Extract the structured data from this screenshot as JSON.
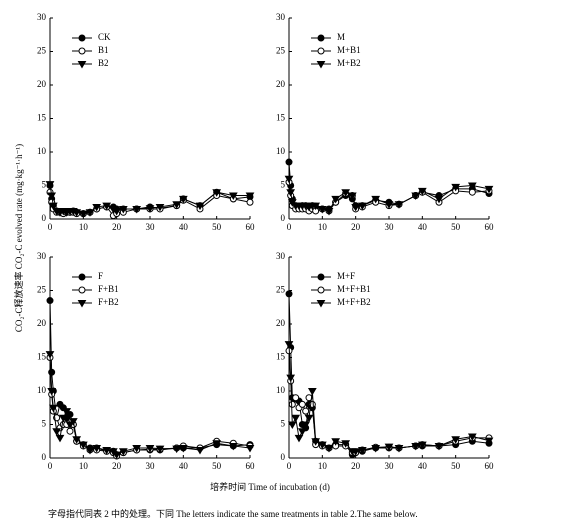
{
  "y_label": "CO₂-C释放速率 CO₂-C evolved rate (mg·kg⁻¹·h⁻¹)",
  "x_label": "培养时间  Time of incubation (d)",
  "caption": "字母指代同表 2 中的处理。下同    The letters indicate the same treatments in table 2.The same below.",
  "chart_data": [
    {
      "type": "line",
      "legend": "upper left",
      "x": [
        0,
        0.5,
        1,
        2,
        3,
        4,
        5,
        6,
        7,
        8,
        10,
        12,
        14,
        17,
        19,
        20,
        22,
        26,
        30,
        33,
        38,
        40,
        45,
        50,
        55,
        60
      ],
      "xlim": [
        0,
        60
      ],
      "xticks": [
        0,
        10,
        20,
        30,
        40,
        50,
        60
      ],
      "ylim": [
        0,
        30
      ],
      "yticks": [
        0,
        5,
        10,
        15,
        20,
        25,
        30
      ],
      "series": [
        {
          "name": "CK",
          "color": "#000000",
          "marker": "circle",
          "values": [
            5,
            3,
            2,
            1.2,
            1,
            1,
            1,
            1,
            1.2,
            1,
            0.8,
            1,
            1.5,
            1.8,
            1.8,
            1.5,
            1.5,
            1.5,
            1.8,
            1.6,
            2,
            3,
            2,
            4,
            3,
            3.3
          ]
        },
        {
          "name": "B1",
          "color": "#000000",
          "marker": "open-circle",
          "values": [
            4,
            2.5,
            1.5,
            1,
            1,
            0.8,
            1,
            1,
            1,
            0.8,
            0.8,
            1,
            1.5,
            1.8,
            0.5,
            0.8,
            1,
            1.5,
            1.5,
            1.5,
            2,
            2.8,
            1.5,
            3.5,
            3,
            2.5
          ]
        },
        {
          "name": "B2",
          "color": "#000000",
          "marker": "triangle-down",
          "values": [
            5.2,
            3.5,
            2,
            1.2,
            1,
            1.2,
            1,
            1.2,
            1.2,
            1,
            0.8,
            1,
            1.8,
            2,
            1.5,
            1.2,
            1.5,
            1.5,
            1.6,
            1.8,
            2.2,
            3,
            2,
            4,
            3.5,
            3.5
          ]
        }
      ]
    },
    {
      "type": "line",
      "legend": "upper left",
      "x": [
        0,
        0.5,
        1,
        2,
        3,
        4,
        5,
        6,
        7,
        8,
        10,
        12,
        14,
        17,
        19,
        20,
        22,
        26,
        30,
        33,
        38,
        40,
        45,
        50,
        55,
        60
      ],
      "xlim": [
        0,
        60
      ],
      "xticks": [
        0,
        10,
        20,
        30,
        40,
        50,
        60
      ],
      "ylim": [
        0,
        30
      ],
      "yticks": [
        0,
        5,
        10,
        15,
        20,
        25,
        30
      ],
      "series": [
        {
          "name": "M",
          "color": "#000000",
          "marker": "circle",
          "values": [
            8.5,
            5,
            3,
            2,
            1.8,
            2,
            2,
            1.8,
            2,
            1.8,
            1.5,
            1.5,
            2.5,
            3.5,
            3,
            2,
            2,
            2.8,
            2.5,
            2.2,
            3.5,
            4,
            3.5,
            4.5,
            4.5,
            3.8
          ]
        },
        {
          "name": "M+B1",
          "color": "#000000",
          "marker": "open-circle",
          "values": [
            5.5,
            3.5,
            2,
            1.5,
            1.5,
            1.5,
            1.5,
            1.2,
            1.5,
            1.2,
            1.5,
            1.2,
            2.5,
            3.8,
            3.5,
            1.5,
            1.8,
            2.5,
            2,
            2.2,
            3.5,
            4,
            2.5,
            4.2,
            4,
            4.2
          ]
        },
        {
          "name": "M+B2",
          "color": "#000000",
          "marker": "triangle-down",
          "values": [
            6,
            4,
            2.5,
            2,
            2,
            2,
            2,
            1.8,
            2,
            2,
            1.5,
            1.2,
            3,
            4,
            3.5,
            1.8,
            2,
            3,
            2.2,
            2.2,
            3.5,
            4.2,
            3,
            4.8,
            5,
            4.5
          ]
        }
      ]
    },
    {
      "type": "line",
      "legend": "upper left",
      "x": [
        0,
        0.5,
        1,
        2,
        3,
        4,
        5,
        6,
        7,
        8,
        10,
        12,
        14,
        17,
        19,
        20,
        22,
        26,
        30,
        33,
        38,
        40,
        45,
        50,
        55,
        60
      ],
      "xlim": [
        0,
        60
      ],
      "xticks": [
        0,
        10,
        20,
        30,
        40,
        50,
        60
      ],
      "ylim": [
        0,
        30
      ],
      "yticks": [
        0,
        5,
        10,
        15,
        20,
        25,
        30
      ],
      "series": [
        {
          "name": "F",
          "color": "#000000",
          "marker": "circle",
          "values": [
            23.5,
            12.8,
            10,
            6,
            8,
            7.5,
            6,
            6.5,
            5,
            2.5,
            2,
            1.5,
            1.5,
            1,
            1,
            0.5,
            0.8,
            1.2,
            1.2,
            1.2,
            1.5,
            1.5,
            1.5,
            2,
            1.8,
            2
          ]
        },
        {
          "name": "F+B1",
          "color": "#000000",
          "marker": "open-circle",
          "values": [
            15,
            9.5,
            7,
            6,
            4.5,
            5,
            5,
            4,
            5,
            2.5,
            1.8,
            1.2,
            1.2,
            1,
            0.8,
            0.3,
            0.8,
            1.2,
            1.3,
            1.3,
            1.5,
            1.8,
            1.5,
            2.5,
            2.2,
            1.8
          ]
        },
        {
          "name": "F+B2",
          "color": "#000000",
          "marker": "triangle-down",
          "values": [
            15.5,
            10,
            7.5,
            4,
            3,
            6,
            7,
            5,
            5.5,
            2.8,
            2,
            1.2,
            1.5,
            1.2,
            1,
            0.5,
            1,
            1.5,
            1.5,
            1.4,
            1.4,
            1.5,
            1.2,
            2.2,
            1.8,
            1.5
          ]
        }
      ]
    },
    {
      "type": "line",
      "legend": "upper left",
      "x": [
        0,
        0.5,
        1,
        2,
        3,
        4,
        5,
        6,
        7,
        8,
        10,
        12,
        14,
        17,
        19,
        20,
        22,
        26,
        30,
        33,
        38,
        40,
        45,
        50,
        55,
        60
      ],
      "xlim": [
        0,
        60
      ],
      "xticks": [
        0,
        10,
        20,
        30,
        40,
        50,
        60
      ],
      "ylim": [
        0,
        30
      ],
      "yticks": [
        0,
        5,
        10,
        15,
        20,
        25,
        30
      ],
      "series": [
        {
          "name": "M+F",
          "color": "#000000",
          "marker": "circle",
          "values": [
            24.5,
            16.5,
            9,
            8.8,
            8.5,
            5,
            4.5,
            8,
            7.5,
            2.5,
            2,
            1.5,
            2,
            2,
            0.5,
            0.8,
            1,
            1.5,
            1.5,
            1.5,
            1.8,
            1.8,
            1.8,
            2,
            2.5,
            2.2
          ]
        },
        {
          "name": "M+F+B1",
          "color": "#000000",
          "marker": "open-circle",
          "values": [
            16,
            11.5,
            8,
            9,
            7.5,
            8,
            7,
            9,
            8,
            2,
            1.8,
            1.5,
            1.8,
            1.8,
            0.8,
            0.8,
            1.2,
            1.6,
            1.6,
            1.5,
            1.8,
            2,
            1.8,
            2.5,
            3,
            3
          ]
        },
        {
          "name": "M+F+B2",
          "color": "#000000",
          "marker": "triangle-down",
          "values": [
            17,
            12,
            5,
            6,
            3,
            4,
            5,
            6,
            10,
            2.5,
            2,
            1.5,
            2.5,
            2.2,
            1,
            1,
            1.2,
            1.5,
            1.7,
            1.5,
            1.8,
            2,
            1.8,
            2.8,
            3.2,
            2.6
          ]
        }
      ]
    }
  ]
}
